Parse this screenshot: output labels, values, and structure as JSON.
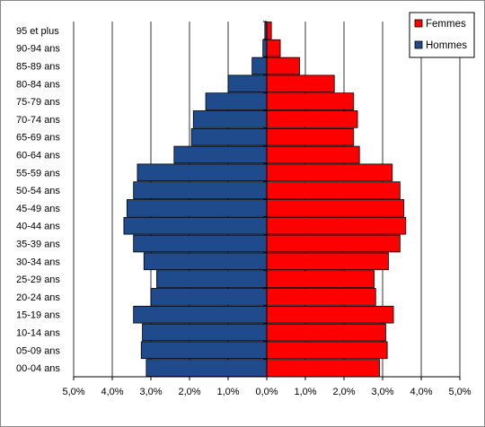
{
  "chart_data": {
    "type": "bar",
    "orientation": "horizontal",
    "layout": "population-pyramid",
    "categories": [
      "95 et plus",
      "90-94 ans",
      "85-89 ans",
      "80-84 ans",
      "75-79 ans",
      "70-74 ans",
      "65-69 ans",
      "60-64 ans",
      "55-59 ans",
      "50-54 ans",
      "45-49 ans",
      "40-44 ans",
      "35-39 ans",
      "30-34 ans",
      "25-29 ans",
      "20-24 ans",
      "15-19 ans",
      "10-14 ans",
      "05-09 ans",
      "00-04 ans"
    ],
    "series": [
      {
        "name": "Femmes",
        "color": "#ff0000",
        "side": "right",
        "values": [
          0.12,
          0.35,
          0.85,
          1.75,
          2.25,
          2.35,
          2.25,
          2.4,
          3.25,
          3.45,
          3.55,
          3.6,
          3.45,
          3.15,
          2.78,
          2.82,
          3.28,
          3.08,
          3.12,
          2.92
        ]
      },
      {
        "name": "Hommes",
        "color": "#1f4b8c",
        "side": "left",
        "values": [
          0.05,
          0.1,
          0.38,
          1.0,
          1.58,
          1.9,
          1.95,
          2.4,
          3.35,
          3.45,
          3.62,
          3.7,
          3.45,
          3.18,
          2.85,
          3.0,
          3.45,
          3.22,
          3.25,
          3.12
        ]
      }
    ],
    "xaxis": {
      "range": [
        -5,
        5
      ],
      "ticks": [
        -5,
        -4,
        -3,
        -2,
        -1,
        0,
        1,
        2,
        3,
        4,
        5
      ],
      "tick_labels": [
        "5,0%",
        "4,0%",
        "3,0%",
        "2,0%",
        "1,0%",
        "0,0%",
        "1,0%",
        "2,0%",
        "3,0%",
        "4,0%",
        "5,0%"
      ]
    },
    "grid": "vertical",
    "legend": {
      "position": "top-right",
      "entries": [
        "Femmes",
        "Hommes"
      ]
    }
  }
}
